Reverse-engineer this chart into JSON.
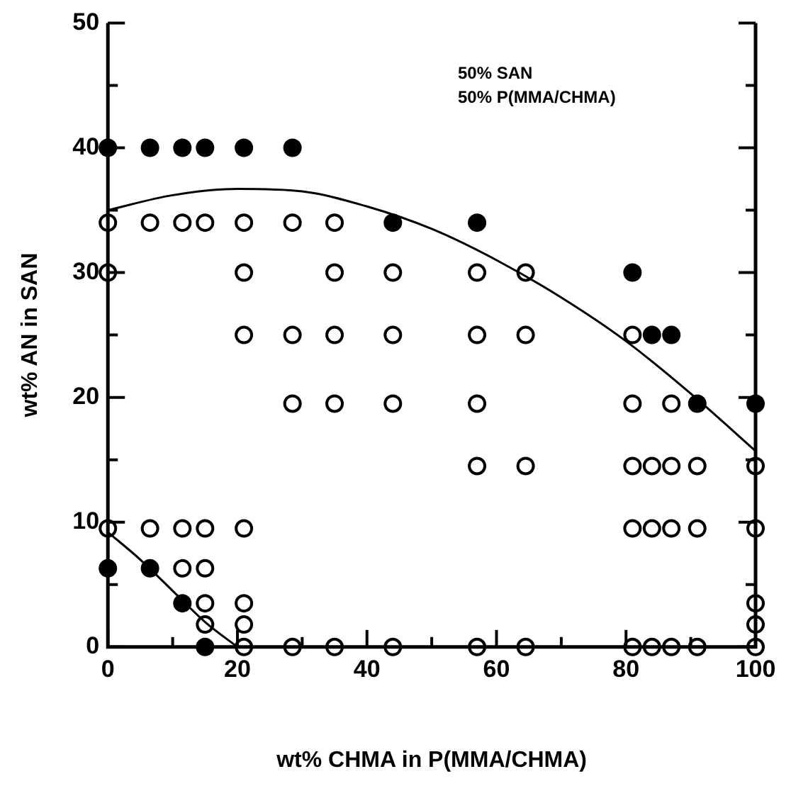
{
  "chart_data": {
    "type": "scatter",
    "xlabel": "wt% CHMA in P(MMA/CHMA)",
    "ylabel": "wt% AN in SAN",
    "annotations": [
      "50% SAN",
      "50% P(MMA/CHMA)"
    ],
    "xlim": [
      0,
      100
    ],
    "ylim": [
      0,
      50
    ],
    "xticks": [
      0,
      {
        "value": 10,
        "label": null
      },
      20,
      {
        "value": 30,
        "label": null
      },
      40,
      {
        "value": 50,
        "label": null
      },
      60,
      {
        "value": 70,
        "label": null
      },
      80,
      {
        "value": 90,
        "label": null
      },
      100
    ],
    "yticks": [
      0,
      {
        "value": 5,
        "label": null
      },
      10,
      {
        "value": 15,
        "label": null
      },
      20,
      {
        "value": 25,
        "label": null
      },
      30,
      {
        "value": 35,
        "label": null
      },
      40,
      {
        "value": 45,
        "label": null
      },
      50
    ],
    "grid": false,
    "legend": false,
    "series": [
      {
        "type": "line",
        "marker": "none",
        "color": "#000000",
        "x": [
          0,
          10,
          20,
          30,
          40,
          50,
          60,
          70,
          80,
          90,
          100
        ],
        "values": [
          35,
          36.2,
          36.7,
          36.5,
          35.3,
          33.5,
          31,
          28,
          24.5,
          20.3,
          15.7
        ]
      },
      {
        "type": "line",
        "marker": "none",
        "color": "#000000",
        "x": [
          0,
          5,
          10,
          15,
          20
        ],
        "values": [
          9.2,
          7,
          4.5,
          2,
          0
        ]
      },
      {
        "marker": "circle",
        "color": "#000000",
        "x": [
          0,
          6.5,
          11.5,
          15,
          21,
          28.5,
          44,
          57,
          81,
          84,
          87,
          91,
          100,
          0,
          6.5,
          11.5,
          15
        ],
        "values": [
          40,
          40,
          40,
          40,
          40,
          40,
          34,
          34,
          30,
          25,
          25,
          19.5,
          19.5,
          6.3,
          6.3,
          3.5,
          0
        ]
      },
      {
        "marker": "circle",
        "color": "#ffffff",
        "x": [
          0,
          6.5,
          11.5,
          15,
          21,
          28.5,
          35,
          0,
          21,
          35,
          44,
          57,
          64.5,
          21,
          28.5,
          35,
          44,
          57,
          64.5,
          81,
          28.5,
          35,
          44,
          57,
          81,
          87,
          57,
          64.5,
          81,
          84,
          87,
          91,
          100,
          0,
          6.5,
          11.5,
          15,
          21,
          81,
          84,
          87,
          91,
          100,
          11.5,
          15,
          15,
          21,
          100,
          15,
          21,
          100,
          21,
          28.5,
          35,
          44,
          57,
          64.5,
          81,
          84,
          87,
          91,
          100
        ],
        "values": [
          34,
          34,
          34,
          34,
          34,
          34,
          34,
          30,
          30,
          30,
          30,
          30,
          30,
          25,
          25,
          25,
          25,
          25,
          25,
          25,
          19.5,
          19.5,
          19.5,
          19.5,
          19.5,
          19.5,
          14.5,
          14.5,
          14.5,
          14.5,
          14.5,
          14.5,
          14.5,
          9.5,
          9.5,
          9.5,
          9.5,
          9.5,
          9.5,
          9.5,
          9.5,
          9.5,
          9.5,
          6.3,
          6.3,
          3.5,
          3.5,
          3.5,
          1.8,
          1.8,
          1.8,
          0,
          0,
          0,
          0,
          0,
          0,
          0,
          0,
          0,
          0,
          0
        ]
      }
    ]
  }
}
